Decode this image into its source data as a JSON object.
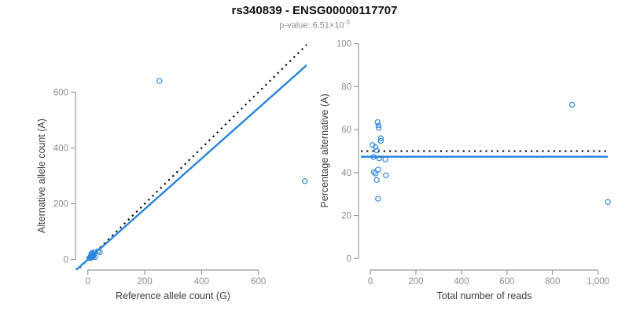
{
  "header": {
    "title": "rs340839 - ENSG00000117707",
    "subtitle_prefix": "p-value: ",
    "p_value_base": "6.51×10",
    "p_value_exponent": "-3"
  },
  "colors": {
    "point_blue": "#2a85dc",
    "fit_line_blue": "#2a85dc",
    "dotted_black": "#000000",
    "axis_gray": "#9a9a9a",
    "tick_label_gray": "#8e8e8e",
    "axis_title_dark": "#3d3d3d"
  },
  "chart_data": [
    {
      "type": "scatter",
      "name": "allele-counts-plot",
      "xlabel": "Reference allele count (G)",
      "ylabel": "Alternative allele count (A)",
      "xlim": [
        0,
        600
      ],
      "ylim": [
        0,
        600
      ],
      "xticks": [
        0,
        200,
        400,
        600
      ],
      "xtick_labels": [
        "0",
        "200",
        "400",
        "600"
      ],
      "yticks": [
        0,
        200,
        400,
        600
      ],
      "ytick_labels": [
        "0",
        "200",
        "400",
        "600"
      ],
      "grid": false,
      "legend": false,
      "points": [
        [
          12,
          20
        ],
        [
          14,
          22
        ],
        [
          15,
          23
        ],
        [
          20,
          26
        ],
        [
          21,
          25
        ],
        [
          5,
          5
        ],
        [
          11,
          11
        ],
        [
          14,
          15
        ],
        [
          7,
          7
        ],
        [
          21,
          18
        ],
        [
          36,
          30
        ],
        [
          20,
          14
        ],
        [
          10,
          6
        ],
        [
          14,
          9
        ],
        [
          42,
          26
        ],
        [
          18,
          10
        ],
        [
          25,
          9
        ],
        [
          252,
          640
        ],
        [
          763,
          281
        ]
      ],
      "lines": [
        {
          "name": "identity-line",
          "style": "dotted",
          "color": "#000000",
          "slope": 1,
          "intercept": 0
        },
        {
          "name": "fit-line",
          "style": "solid",
          "color": "#2a85dc",
          "slope": 0.905,
          "intercept": 0
        }
      ]
    },
    {
      "type": "scatter",
      "name": "percentage-alternative-plot",
      "xlabel": "Total number of reads",
      "ylabel": "Percentage alternative (A)",
      "xlim": [
        0,
        1000
      ],
      "ylim": [
        0,
        100
      ],
      "xticks": [
        0,
        200,
        400,
        600,
        800,
        1000
      ],
      "xtick_labels": [
        "0",
        "200",
        "400",
        "600",
        "800",
        "1,000"
      ],
      "yticks": [
        0,
        20,
        40,
        60,
        80,
        100
      ],
      "ytick_labels": [
        "0",
        "20",
        "40",
        "60",
        "80",
        "100"
      ],
      "grid": false,
      "legend": false,
      "points": [
        [
          32,
          63.5
        ],
        [
          36,
          62.0
        ],
        [
          37,
          60.8
        ],
        [
          46,
          56.0
        ],
        [
          46,
          54.8
        ],
        [
          10,
          52.8
        ],
        [
          22,
          51.9
        ],
        [
          29,
          50.3
        ],
        [
          14,
          47.3
        ],
        [
          39,
          46.6
        ],
        [
          66,
          46.1
        ],
        [
          34,
          41.4
        ],
        [
          16,
          40.2
        ],
        [
          23,
          39.6
        ],
        [
          68,
          38.7
        ],
        [
          28,
          36.6
        ],
        [
          34,
          27.8
        ],
        [
          886,
          71.6
        ],
        [
          1043,
          26.3
        ]
      ],
      "lines": [
        {
          "name": "expected-line",
          "style": "dotted",
          "color": "#000000",
          "hline": 50
        },
        {
          "name": "fit-line",
          "style": "solid",
          "color": "#2a85dc",
          "hline": 47.4
        }
      ]
    }
  ]
}
